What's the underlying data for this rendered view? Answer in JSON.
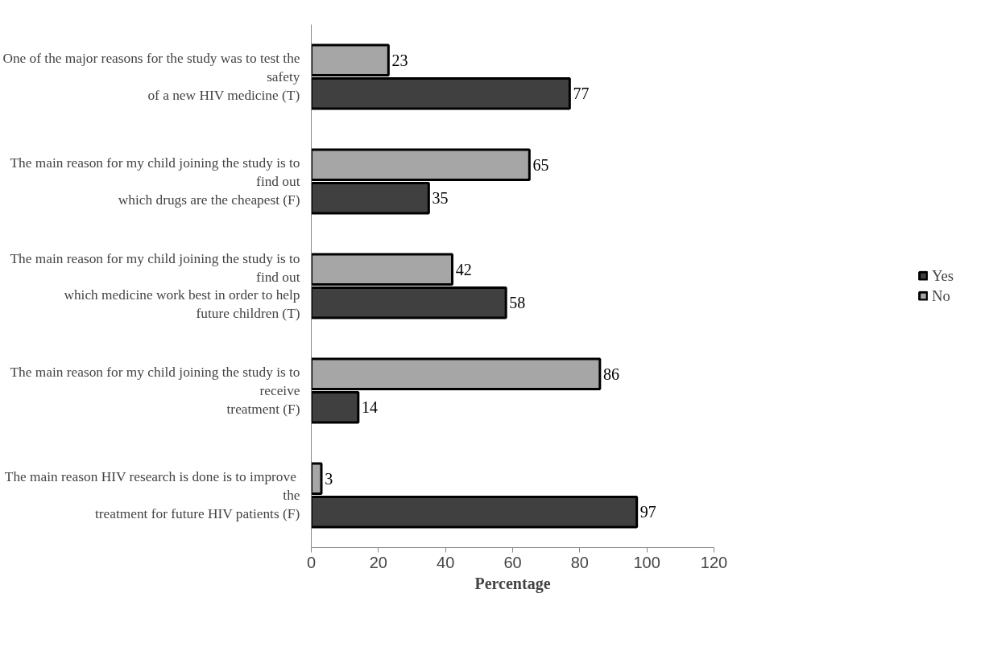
{
  "chart_data": {
    "type": "bar",
    "orientation": "horizontal",
    "xlabel": "Percentage",
    "categories": [
      "One of the major reasons for the study was to test the\nsafety\nof a new HIV medicine (T)",
      "The main reason for my child joining the study is to\nfind out\nwhich drugs are the cheapest (F)",
      "The main reason for my child joining the study is to\nfind out\nwhich medicine work best in order to help\nfuture children (T)",
      "The main reason for my child joining the study is to\nreceive\ntreatment (F)",
      "The main reason HIV research is  done is to improve\nthe\ntreatment for future HIV patients (F)"
    ],
    "series": [
      {
        "name": "No",
        "color": "#a6a6a6",
        "values": [
          23,
          65,
          42,
          86,
          3
        ]
      },
      {
        "name": "Yes",
        "color": "#404040",
        "values": [
          77,
          35,
          58,
          14,
          97
        ]
      }
    ],
    "xlim": [
      0,
      120
    ],
    "xticks": [
      0,
      20,
      40,
      60,
      80,
      100,
      120
    ],
    "data_labels": true,
    "grid": false,
    "legend": "right"
  }
}
